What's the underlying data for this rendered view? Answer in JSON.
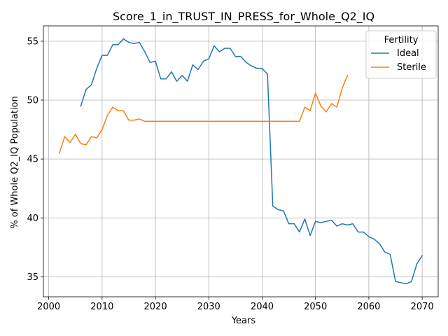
{
  "chart_data": {
    "type": "line",
    "title": "Score_1_in_TRUST_IN_PRESS_for_Whole_Q2_IQ",
    "xlabel": "Years",
    "ylabel": "% of Whole Q2_IQ Population",
    "xlim": [
      1999,
      2073
    ],
    "ylim": [
      33.3,
      56.3
    ],
    "xticks": [
      2000,
      2010,
      2020,
      2030,
      2040,
      2050,
      2060,
      2070
    ],
    "yticks": [
      35,
      40,
      45,
      50,
      55
    ],
    "grid": true,
    "legend": {
      "title": "Fertility",
      "placement": "top-right"
    },
    "series": [
      {
        "name": "Ideal",
        "color": "#1f77b4",
        "x": [
          2006,
          2007,
          2008,
          2009,
          2010,
          2011,
          2012,
          2013,
          2014,
          2015,
          2016,
          2017,
          2018,
          2019,
          2020,
          2021,
          2022,
          2023,
          2024,
          2025,
          2026,
          2027,
          2028,
          2029,
          2030,
          2031,
          2032,
          2033,
          2034,
          2035,
          2036,
          2037,
          2038,
          2039,
          2040,
          2041,
          2042,
          2043,
          2044,
          2045,
          2046,
          2047,
          2048,
          2049,
          2050,
          2051,
          2052,
          2053,
          2054,
          2055,
          2056,
          2057,
          2058,
          2059,
          2060,
          2061,
          2062,
          2063,
          2064,
          2065,
          2066,
          2067,
          2068,
          2069,
          2070
        ],
        "y": [
          49.5,
          50.9,
          51.3,
          52.7,
          53.8,
          53.8,
          54.7,
          54.7,
          55.2,
          54.9,
          54.8,
          54.9,
          54.1,
          53.2,
          53.3,
          51.8,
          51.8,
          52.4,
          51.6,
          52.1,
          51.6,
          53.0,
          52.6,
          53.3,
          53.5,
          54.6,
          54.1,
          54.4,
          54.4,
          53.7,
          53.7,
          53.2,
          52.9,
          52.7,
          52.7,
          52.2,
          41.0,
          40.7,
          40.6,
          39.5,
          39.5,
          38.8,
          39.9,
          38.5,
          39.7,
          39.6,
          39.7,
          39.8,
          39.3,
          39.5,
          39.4,
          39.5,
          38.8,
          38.8,
          38.4,
          38.2,
          37.8,
          37.1,
          36.9,
          34.6,
          34.5,
          34.4,
          34.6,
          36.1,
          36.8
        ]
      },
      {
        "name": "Sterile",
        "color": "#ff7f0e",
        "x": [
          2002,
          2003,
          2004,
          2005,
          2006,
          2007,
          2008,
          2009,
          2010,
          2011,
          2012,
          2013,
          2014,
          2015,
          2016,
          2017,
          2018,
          2019,
          2020,
          2021,
          2022,
          2023,
          2024,
          2025,
          2026,
          2027,
          2028,
          2029,
          2030,
          2031,
          2032,
          2033,
          2034,
          2035,
          2036,
          2037,
          2038,
          2039,
          2040,
          2041,
          2042,
          2043,
          2044,
          2045,
          2046,
          2047,
          2048,
          2049,
          2050,
          2051,
          2052,
          2053,
          2054,
          2055,
          2056
        ],
        "y": [
          45.5,
          46.9,
          46.4,
          47.1,
          46.3,
          46.2,
          46.9,
          46.8,
          47.5,
          48.7,
          49.4,
          49.1,
          49.1,
          48.3,
          48.3,
          48.4,
          48.2,
          48.2,
          48.2,
          48.2,
          48.2,
          48.2,
          48.2,
          48.2,
          48.2,
          48.2,
          48.2,
          48.2,
          48.2,
          48.2,
          48.2,
          48.2,
          48.2,
          48.2,
          48.2,
          48.2,
          48.2,
          48.2,
          48.2,
          48.2,
          48.2,
          48.2,
          48.2,
          48.2,
          48.2,
          48.2,
          49.4,
          49.1,
          50.6,
          49.5,
          49.0,
          49.7,
          49.4,
          51.0,
          52.1
        ]
      }
    ]
  }
}
